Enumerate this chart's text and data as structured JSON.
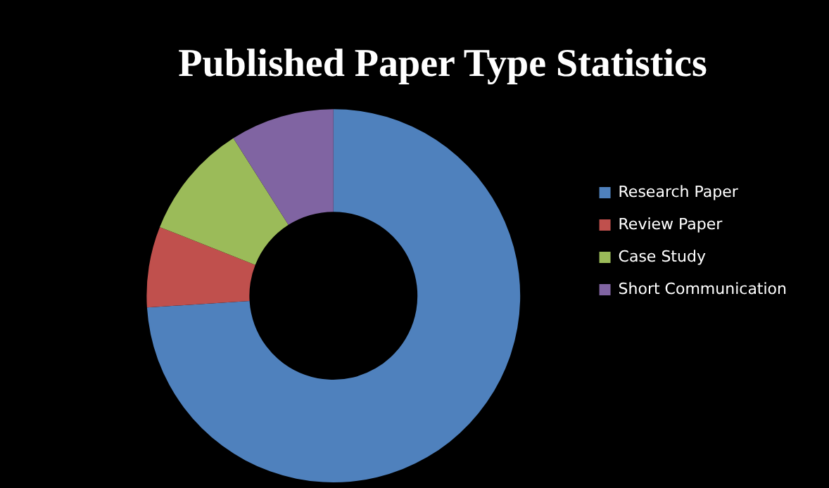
{
  "chart_data": {
    "type": "donut",
    "title": "Published Paper Type Statistics",
    "categories": [
      "Research Paper",
      "Review Paper",
      "Case Study",
      "Short Communication"
    ],
    "values": [
      74,
      7,
      10,
      9
    ],
    "colors": [
      "#4f81bd",
      "#c0504d",
      "#9bbb59",
      "#8064a2"
    ],
    "legend": "right"
  }
}
